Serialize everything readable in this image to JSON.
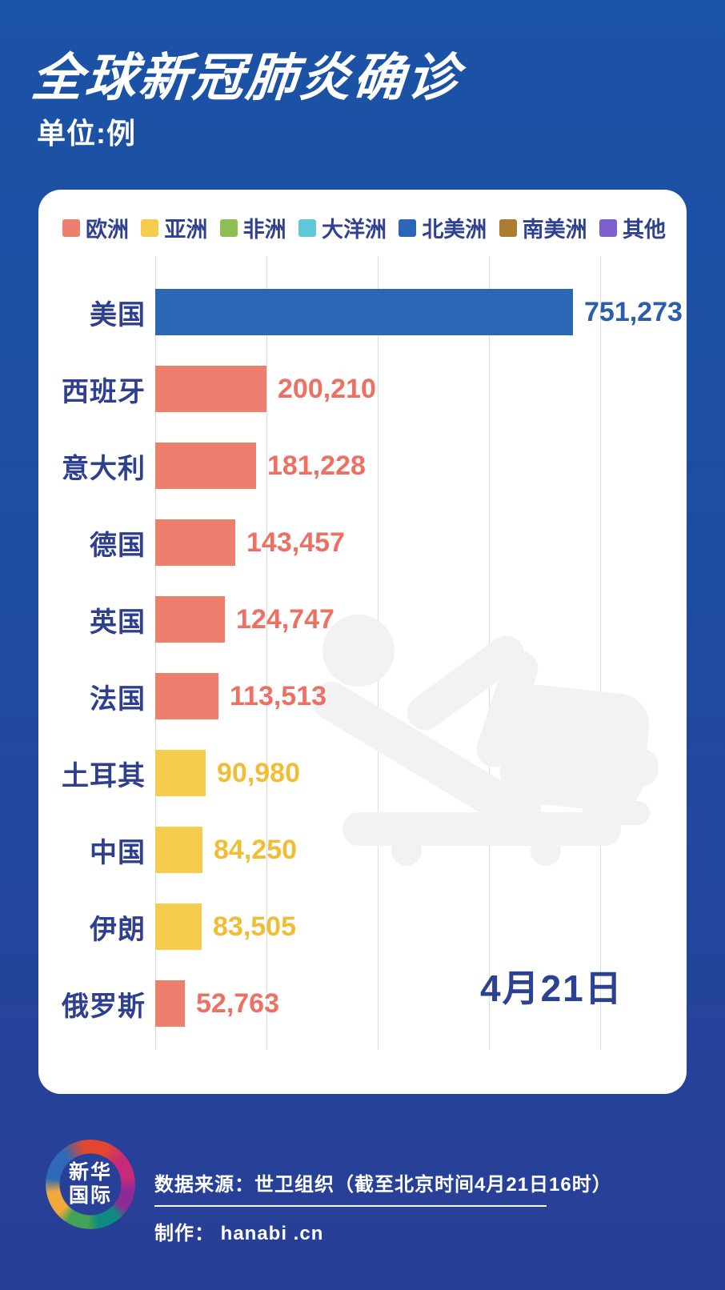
{
  "header": {
    "title": "全球新冠肺炎确诊",
    "unit_label": "单位:例"
  },
  "legend": {
    "items": [
      {
        "label": "欧洲",
        "color": "#ee7e6e"
      },
      {
        "label": "亚洲",
        "color": "#f5cc4c"
      },
      {
        "label": "非洲",
        "color": "#8ebf52"
      },
      {
        "label": "大洋洲",
        "color": "#5ec8d9"
      },
      {
        "label": "北美洲",
        "color": "#2c67b5"
      },
      {
        "label": "南美洲",
        "color": "#ad7c33"
      },
      {
        "label": "其他",
        "color": "#7e5fcd"
      }
    ]
  },
  "chart_data": {
    "type": "bar",
    "orientation": "horizontal",
    "title": "全球新冠肺炎确诊",
    "unit": "例",
    "categories": [
      "美国",
      "西班牙",
      "意大利",
      "德国",
      "英国",
      "法国",
      "土耳其",
      "中国",
      "伊朗",
      "俄罗斯"
    ],
    "values": [
      751273,
      200210,
      181228,
      143457,
      124747,
      113513,
      90980,
      84250,
      83505,
      52763
    ],
    "value_labels": [
      "751,273",
      "200,210",
      "181,228",
      "143,457",
      "124,747",
      "113,513",
      "90,980",
      "84,250",
      "83,505",
      "52,763"
    ],
    "regions": [
      "北美洲",
      "欧洲",
      "欧洲",
      "欧洲",
      "欧洲",
      "欧洲",
      "亚洲",
      "亚洲",
      "亚洲",
      "欧洲"
    ],
    "region_colors": {
      "欧洲": "#ee7e6e",
      "亚洲": "#f5cc4c",
      "非洲": "#8ebf52",
      "大洋洲": "#5ec8d9",
      "北美洲": "#2c67b5",
      "南美洲": "#ad7c33",
      "其他": "#7e5fcd"
    },
    "value_text_colors": {
      "欧洲": "#ec7163",
      "亚洲": "#f0bd35",
      "北美洲": "#2b5cad"
    },
    "xlim": [
      0,
      800000
    ],
    "gridline_interval": 200000,
    "grid": true,
    "legend_position": "top",
    "date_annotation": "4月21日"
  },
  "footer": {
    "logo_line1": "新华",
    "logo_line2": "国际",
    "logo_ring_colors": [
      "#e2472e",
      "#c62a7a",
      "#8e2a93",
      "#0f8b7f",
      "#44a356",
      "#f2a93b",
      "#2f6ab8",
      "#e2472e"
    ],
    "source": "数据来源：世卫组织（截至北京时间4月21日16时）",
    "credit": "制作： hanabi .cn"
  },
  "colors": {
    "background_top": "#1b53a6",
    "background_bottom": "#293e96",
    "card": "#ffffff",
    "label_text": "#2e3f90",
    "legend_text": "#30418f",
    "gridline": "#dcdce2",
    "watermark": "#f2f2f5"
  }
}
